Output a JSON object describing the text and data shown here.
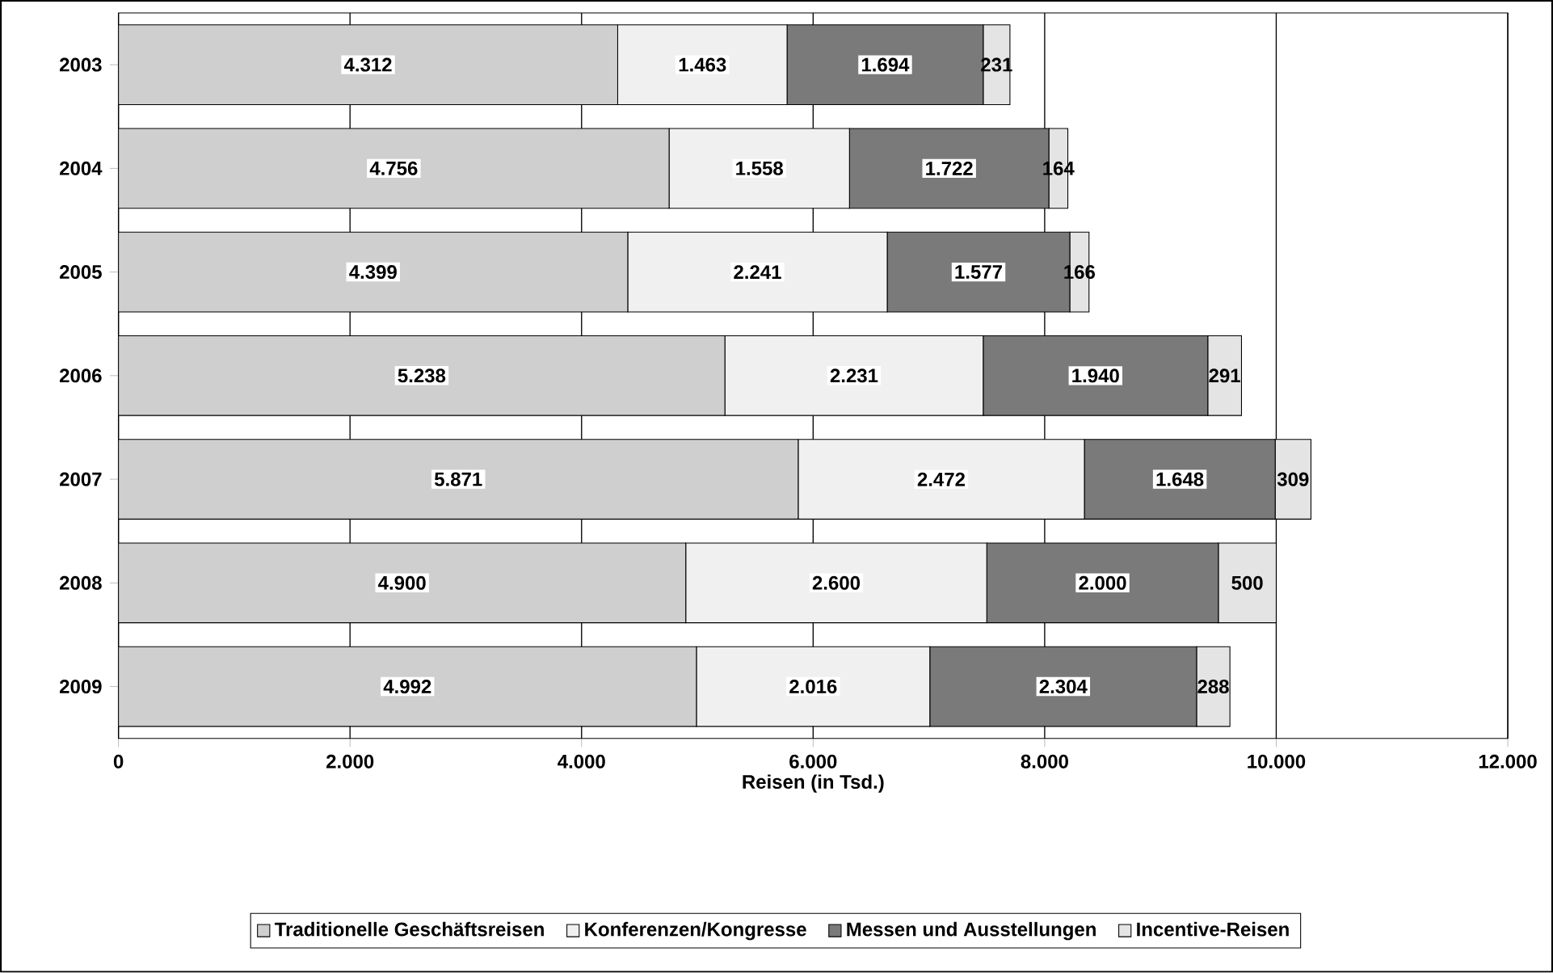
{
  "chart_data": {
    "type": "bar",
    "orientation": "horizontal",
    "stacked": true,
    "categories": [
      "2003",
      "2004",
      "2005",
      "2006",
      "2007",
      "2008",
      "2009"
    ],
    "series": [
      {
        "name": "Traditionelle Geschäftsreisen",
        "color": "#cfcfcf",
        "values": [
          4312,
          4756,
          4399,
          5238,
          5871,
          4900,
          4992
        ],
        "value_labels": [
          "4.312",
          "4.756",
          "4.399",
          "5.238",
          "5.871",
          "4.900",
          "4.992"
        ]
      },
      {
        "name": "Konferenzen/Kongresse",
        "color": "#f0f0f0",
        "values": [
          1463,
          1558,
          2241,
          2231,
          2472,
          2600,
          2016
        ],
        "value_labels": [
          "1.463",
          "1.558",
          "2.241",
          "2.231",
          "2.472",
          "2.600",
          "2.016"
        ]
      },
      {
        "name": "Messen und Ausstellungen",
        "color": "#7a7a7a",
        "values": [
          1694,
          1722,
          1577,
          1940,
          1648,
          2000,
          2304
        ],
        "value_labels": [
          "1.694",
          "1.722",
          "1.577",
          "1.940",
          "1.648",
          "2.000",
          "2.304"
        ]
      },
      {
        "name": "Incentive-Reisen",
        "color": "#e4e4e4",
        "values": [
          231,
          164,
          166,
          291,
          309,
          500,
          288
        ],
        "value_labels": [
          "231",
          "164",
          "166",
          "291",
          "309",
          "500",
          "288"
        ]
      }
    ],
    "xlabel": "Reisen (in Tsd.)",
    "xlim": [
      0,
      12000
    ],
    "xticks": [
      0,
      {
        "value": 2000,
        "label": "2.000"
      },
      {
        "value": 4000,
        "label": "4.000"
      },
      {
        "value": 6000,
        "label": "6.000"
      },
      {
        "value": 8000,
        "label": "8.000"
      },
      {
        "value": 10000,
        "label": "10.000"
      },
      {
        "value": 12000,
        "label": "12.000"
      }
    ],
    "grid": "x",
    "legend": "bottom"
  }
}
